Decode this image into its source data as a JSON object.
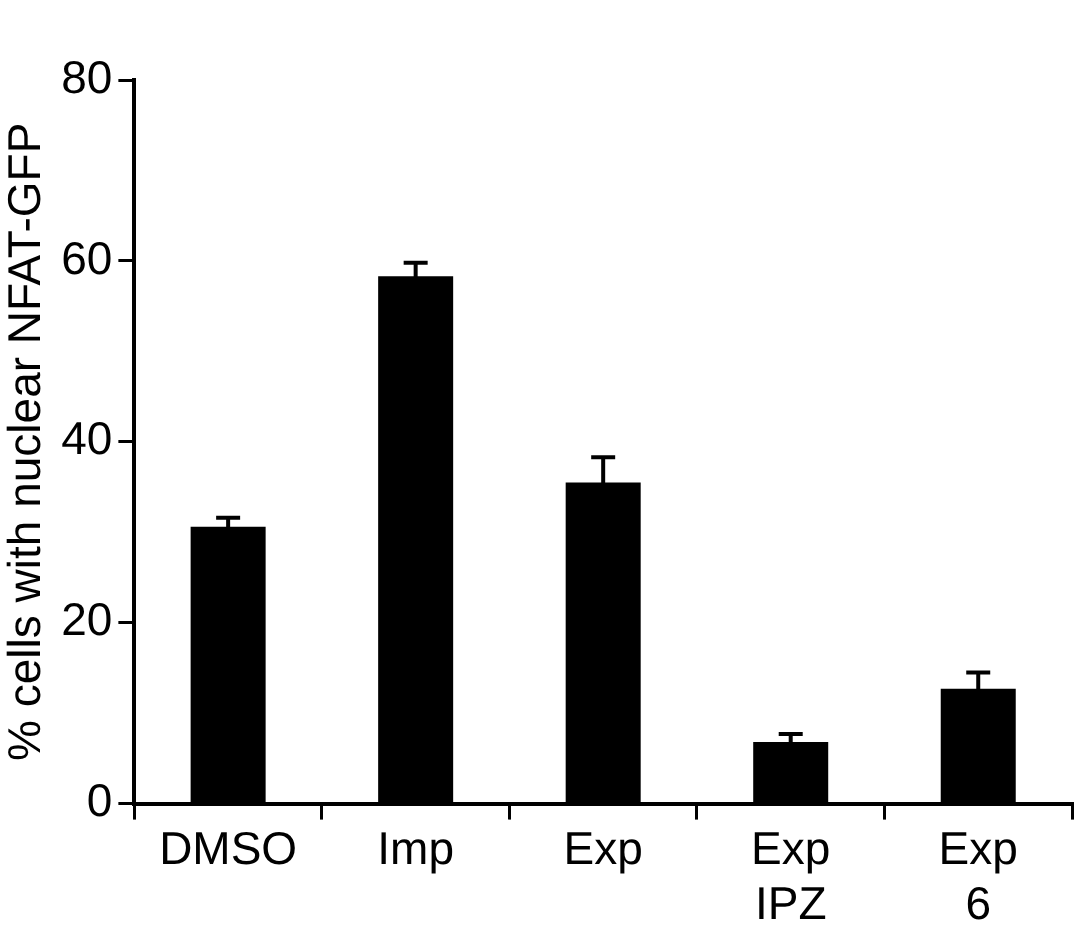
{
  "chart_data": {
    "type": "bar",
    "ylabel": "% cells with nuclear NFAT-GFP",
    "categories": [
      "DMSO",
      "Imp",
      "Exp",
      "Exp IPZ",
      "Exp 6"
    ],
    "values": [
      30.6,
      58.3,
      35.5,
      6.8,
      12.7
    ],
    "errors": [
      1.0,
      1.5,
      2.8,
      0.9,
      1.8
    ],
    "color": "#000000",
    "ylim": [
      0,
      80
    ],
    "yticks": [
      0,
      20,
      40,
      60,
      80
    ],
    "grid": false,
    "legend": false
  }
}
